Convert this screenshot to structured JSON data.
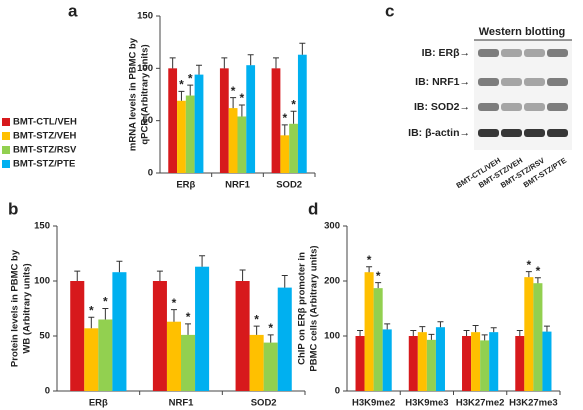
{
  "chart_data": [
    {
      "type": "bar",
      "panel": "a",
      "ylabel": [
        "mRNA levels in PBMC by",
        "qPCR (Arbitrary units)"
      ],
      "categories": [
        "ERβ",
        "NRF1",
        "SOD2"
      ],
      "ylim": [
        0,
        150
      ],
      "yticks": [
        0,
        50,
        100,
        150
      ],
      "legend": "left",
      "series": [
        {
          "name": "BMT-CTL/VEH",
          "color": "#d7191c",
          "values": [
            100,
            100,
            100
          ],
          "errors": [
            10,
            10,
            10
          ],
          "significance": [
            null,
            null,
            null
          ]
        },
        {
          "name": "BMT-STZ/VEH",
          "color": "#ffc000",
          "values": [
            69,
            62,
            36
          ],
          "errors": [
            9,
            10,
            10
          ],
          "significance": [
            "*",
            "*",
            "*"
          ]
        },
        {
          "name": "BMT-STZ/RSV",
          "color": "#92d050",
          "values": [
            74,
            54,
            47
          ],
          "errors": [
            10,
            11,
            12
          ],
          "significance": [
            "*",
            "*",
            "*"
          ]
        },
        {
          "name": "BMT-STZ/PTE",
          "color": "#00b0f0",
          "values": [
            94,
            103,
            113
          ],
          "errors": [
            9,
            10,
            11
          ],
          "significance": [
            null,
            null,
            null
          ]
        }
      ]
    },
    {
      "type": "bar",
      "panel": "b",
      "ylabel": [
        "Protein levels in PBMC by",
        "WB (Arbitrary units)"
      ],
      "categories": [
        "ERβ",
        "NRF1",
        "SOD2"
      ],
      "ylim": [
        0,
        150
      ],
      "yticks": [
        0,
        50,
        100,
        150
      ],
      "series": [
        {
          "color": "#d7191c",
          "values": [
            100,
            100,
            100
          ],
          "errors": [
            9,
            9,
            10
          ],
          "significance": [
            null,
            null,
            null
          ]
        },
        {
          "color": "#ffc000",
          "values": [
            57,
            63,
            51
          ],
          "errors": [
            10,
            11,
            8
          ],
          "significance": [
            "*",
            "*",
            "*"
          ]
        },
        {
          "color": "#92d050",
          "values": [
            65,
            51,
            44
          ],
          "errors": [
            10,
            10,
            7
          ],
          "significance": [
            "*",
            "*",
            "*"
          ]
        },
        {
          "color": "#00b0f0",
          "values": [
            108,
            113,
            94
          ],
          "errors": [
            10,
            10,
            11
          ],
          "significance": [
            null,
            null,
            null
          ]
        }
      ]
    },
    {
      "type": "bar",
      "panel": "d",
      "ylabel": [
        "ChIP on ERβ promoter in",
        "PBMC cells (Arbitrary units)"
      ],
      "categories": [
        "H3K9me2",
        "H3K9me3",
        "H3K27me2",
        "H3K27me3"
      ],
      "ylim": [
        0,
        300
      ],
      "yticks": [
        0,
        100,
        200,
        300
      ],
      "series": [
        {
          "color": "#d7191c",
          "values": [
            100,
            100,
            100,
            100
          ],
          "errors": [
            10,
            10,
            10,
            10
          ],
          "significance": [
            null,
            null,
            null,
            null
          ]
        },
        {
          "color": "#ffc000",
          "values": [
            216,
            107,
            107,
            207
          ],
          "errors": [
            10,
            10,
            12,
            10
          ],
          "significance": [
            "*",
            null,
            null,
            "*"
          ]
        },
        {
          "color": "#92d050",
          "values": [
            187,
            93,
            92,
            196
          ],
          "errors": [
            10,
            10,
            10,
            10
          ],
          "significance": [
            "*",
            null,
            null,
            "*"
          ]
        },
        {
          "color": "#00b0f0",
          "values": [
            112,
            116,
            107,
            108
          ],
          "errors": [
            10,
            10,
            8,
            10
          ],
          "significance": [
            null,
            null,
            null,
            null
          ]
        }
      ]
    }
  ],
  "western_blot": {
    "panel": "c",
    "title": "Western blotting",
    "rows": [
      "IB: ERβ→",
      "IB: NRF1→",
      "IB: SOD2→",
      "IB: β-actin→"
    ],
    "lanes": [
      "BMT-CTL/VEH",
      "BMT-STZ/VEH",
      "BMT-STZ/RSV",
      "BMT-STZ/PTE"
    ]
  }
}
